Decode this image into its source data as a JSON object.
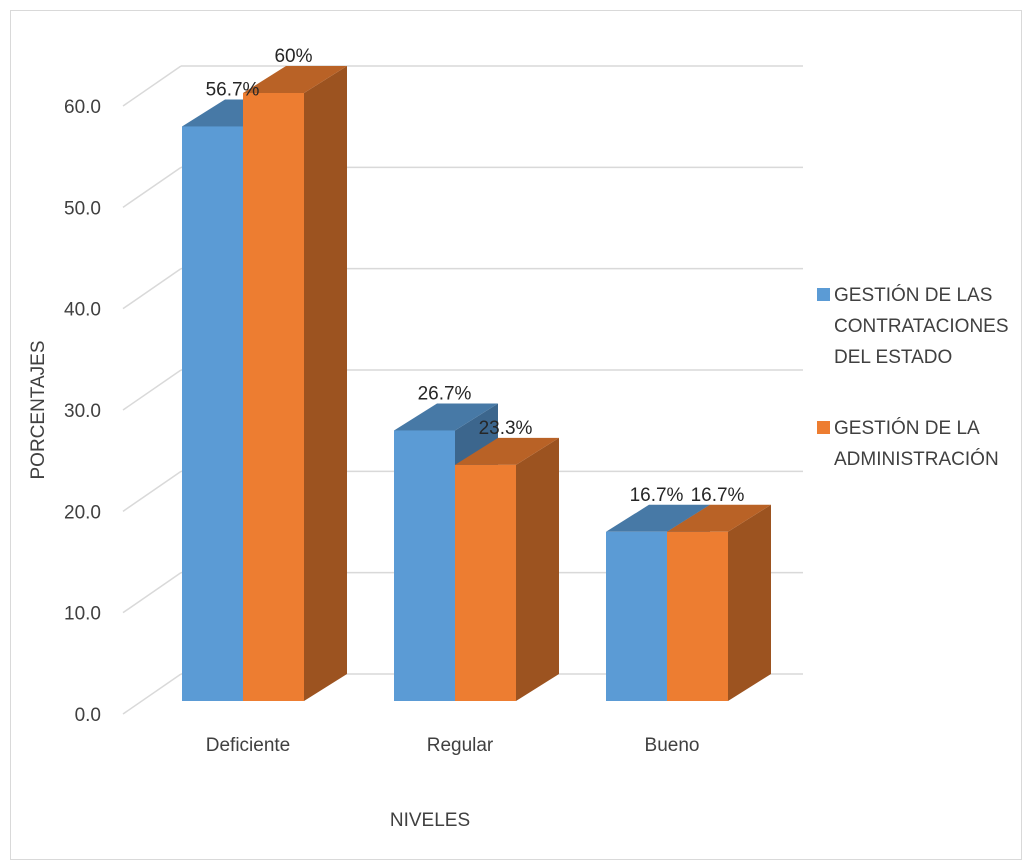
{
  "chart_data": {
    "type": "bar",
    "categories": [
      "Deficiente",
      "Regular",
      "Bueno"
    ],
    "series": [
      {
        "name_lines": [
          "GESTIÓN DE LAS",
          "CONTRATACIONES",
          "DEL ESTADO"
        ],
        "values": [
          56.7,
          26.7,
          16.7
        ],
        "labels": [
          "56.7%",
          "26.7%",
          "16.7%"
        ],
        "color": "#5b9bd5"
      },
      {
        "name_lines": [
          "GESTIÓN DE LA",
          "ADMINISTRACIÓN"
        ],
        "values": [
          60,
          23.3,
          16.7
        ],
        "labels": [
          "60%",
          "23.3%",
          "16.7%"
        ],
        "color": "#ed7d31"
      }
    ],
    "xlabel": "NIVELES",
    "ylabel": "PORCENTAJES",
    "ylim": [
      0,
      60
    ],
    "yticks": [
      "0.0",
      "10.0",
      "20.0",
      "30.0",
      "40.0",
      "50.0",
      "60.0"
    ],
    "style": "3d-clustered-column",
    "grid": true,
    "legend_position": "right"
  }
}
